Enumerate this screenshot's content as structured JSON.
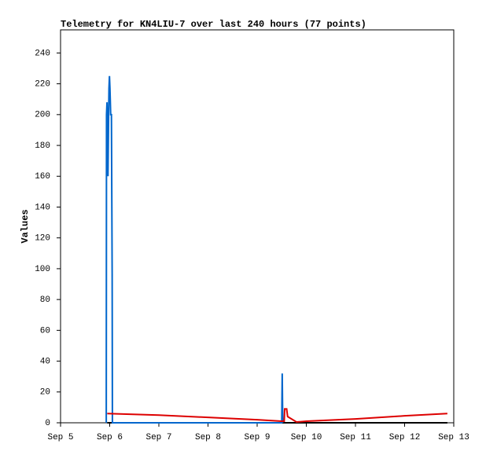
{
  "chart_data": {
    "type": "line",
    "title": "Telemetry for KN4LIU-7 over last 240 hours (77 points)",
    "y_label": "Values",
    "xlim": [
      0,
      8
    ],
    "xticks": [
      {
        "value": 0,
        "label": "Sep 5"
      },
      {
        "value": 1,
        "label": "Sep 6"
      },
      {
        "value": 2,
        "label": "Sep 7"
      },
      {
        "value": 3,
        "label": "Sep 8"
      },
      {
        "value": 4,
        "label": "Sep 9"
      },
      {
        "value": 5,
        "label": "Sep 10"
      },
      {
        "value": 6,
        "label": "Sep 11"
      },
      {
        "value": 7,
        "label": "Sep 12"
      },
      {
        "value": 8,
        "label": "Sep 13"
      }
    ],
    "ylim": [
      0,
      255
    ],
    "yticks": [
      0,
      20,
      40,
      60,
      80,
      100,
      120,
      140,
      160,
      180,
      200,
      220,
      240
    ],
    "series": [
      {
        "color": "#000000",
        "x": [
          0.95,
          7.87
        ],
        "values": [
          0,
          0
        ]
      },
      {
        "color": "#0066cc",
        "x": [
          0.93,
          0.935,
          0.945,
          0.955,
          0.965,
          0.975,
          0.985,
          0.995,
          1.005,
          1.02,
          1.035,
          1.05,
          1.055,
          4.5,
          4.51,
          4.52
        ],
        "values": [
          0,
          200,
          208,
          192,
          160,
          192,
          217,
          225,
          217,
          200,
          200,
          97,
          0,
          0,
          32,
          0
        ]
      },
      {
        "color": "#dd0000",
        "x": [
          0.95,
          2,
          3,
          4,
          4.5,
          4.55,
          4.56,
          4.6,
          4.62,
          4.8,
          5,
          6,
          7,
          7.87
        ],
        "values": [
          6,
          5,
          3.5,
          2,
          1,
          1,
          9,
          9,
          4,
          0.5,
          1,
          2.5,
          4.5,
          6
        ]
      }
    ]
  }
}
